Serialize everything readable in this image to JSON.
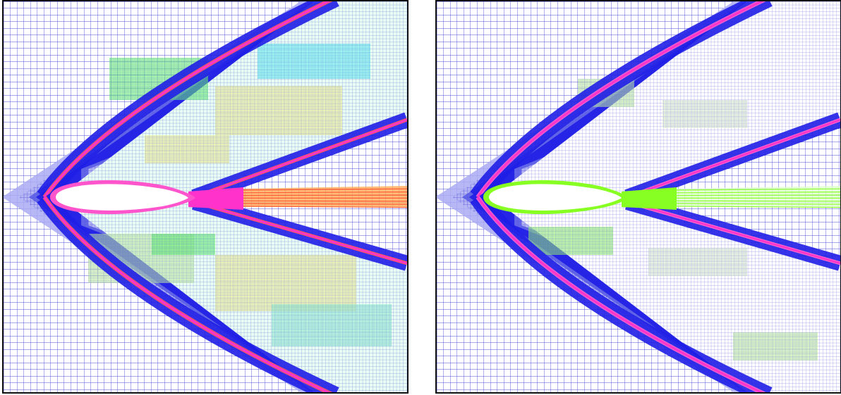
{
  "figure": {
    "panels": [
      {
        "id": "left",
        "style": "rainbow",
        "colors": {
          "grid": "#4f4fd9",
          "coarse_fill": "#a9aaf2",
          "mid_fill": "#5558e4",
          "fine_fill": "#1f1ee6",
          "shock": "#ff33cc",
          "shock_edge": "#ff5566",
          "interior": [
            "#66ff66",
            "#ffff88",
            "#66ffee",
            "#ccff99",
            "#99ffcc"
          ],
          "wake_core": "#ff5533",
          "airfoil": "#ffffff"
        }
      },
      {
        "id": "right",
        "style": "blue-green",
        "colors": {
          "grid": "#4f4fd9",
          "coarse_fill": "#a9aaf2",
          "mid_fill": "#5558e4",
          "fine_fill": "#1f1ee6",
          "shock": "#ff33cc",
          "shock_edge": "#ff66cc",
          "interior": [
            "#ccff99",
            "#99ff66",
            "#eeffcc"
          ],
          "wake_core": "#88ff22",
          "airfoil": "#ffffff"
        }
      }
    ]
  }
}
